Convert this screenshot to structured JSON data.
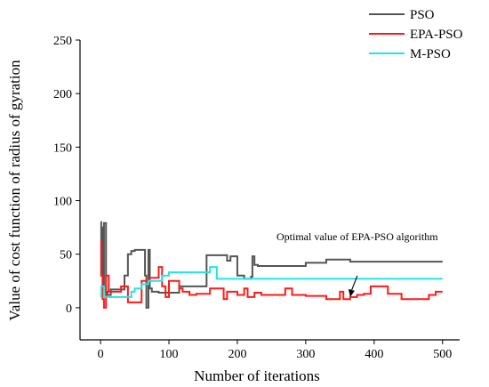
{
  "chart_data": {
    "type": "line",
    "title": "",
    "xlabel": "Number of iterations",
    "ylabel": "Value of cost function of radius of gyration",
    "xlim": [
      -30,
      525
    ],
    "ylim": [
      -30,
      250
    ],
    "xticks": [
      0,
      100,
      200,
      300,
      400,
      500
    ],
    "yticks": [
      0,
      50,
      100,
      150,
      200,
      250
    ],
    "grid": false,
    "legend_position": "top-right",
    "annotation": {
      "text": "Optimal value of EPA-PSO algorithm",
      "arrow_to": [
        365,
        10
      ]
    },
    "series": [
      {
        "name": "PSO",
        "color": "#555555",
        "x": [
          0,
          1,
          1,
          2,
          2,
          3,
          3,
          5,
          5,
          8,
          8,
          10,
          10,
          15,
          15,
          35,
          35,
          40,
          40,
          45,
          45,
          50,
          50,
          60,
          60,
          65,
          65,
          67,
          67,
          70,
          70,
          72,
          72,
          75,
          75,
          85,
          85,
          95,
          95,
          115,
          115,
          155,
          155,
          185,
          185,
          190,
          190,
          200,
          200,
          210,
          210,
          220,
          220,
          222,
          222,
          225,
          225,
          230,
          230,
          300,
          300,
          330,
          330,
          335,
          335,
          365,
          365,
          500
        ],
        "y": [
          80,
          80,
          30,
          30,
          75,
          75,
          20,
          20,
          79,
          79,
          15,
          15,
          12,
          12,
          17,
          17,
          30,
          30,
          50,
          50,
          53,
          53,
          54,
          54,
          54,
          54,
          30,
          30,
          0,
          0,
          54,
          54,
          18,
          18,
          15,
          15,
          14,
          14,
          14,
          14,
          20,
          20,
          49,
          49,
          44,
          44,
          48,
          48,
          30,
          30,
          27,
          27,
          29,
          29,
          48,
          48,
          40,
          40,
          39,
          39,
          42,
          42,
          45,
          45,
          45,
          45,
          43,
          43
        ]
      },
      {
        "name": "EPA-PSO",
        "color": "#ff1a1a",
        "x": [
          0,
          1,
          1,
          3,
          3,
          5,
          5,
          8,
          8,
          12,
          12,
          15,
          15,
          30,
          30,
          40,
          40,
          50,
          50,
          60,
          60,
          70,
          70,
          85,
          85,
          90,
          90,
          95,
          95,
          100,
          100,
          115,
          115,
          120,
          120,
          130,
          130,
          140,
          140,
          160,
          160,
          180,
          180,
          185,
          185,
          200,
          200,
          210,
          210,
          215,
          215,
          225,
          225,
          235,
          235,
          270,
          270,
          280,
          280,
          290,
          290,
          300,
          300,
          330,
          330,
          350,
          350,
          355,
          355,
          365,
          365,
          375,
          375,
          385,
          385,
          395,
          395,
          420,
          420,
          440,
          440,
          480,
          480,
          490,
          490,
          500
        ],
        "y": [
          62,
          62,
          30,
          30,
          8,
          8,
          0,
          0,
          30,
          30,
          15,
          15,
          15,
          15,
          20,
          20,
          5,
          5,
          5,
          5,
          25,
          25,
          28,
          28,
          38,
          38,
          20,
          20,
          10,
          10,
          25,
          25,
          18,
          18,
          15,
          15,
          12,
          12,
          13,
          13,
          18,
          18,
          8,
          8,
          15,
          15,
          12,
          12,
          18,
          18,
          10,
          10,
          14,
          14,
          12,
          12,
          18,
          18,
          12,
          12,
          12,
          12,
          11,
          11,
          8,
          8,
          15,
          15,
          8,
          8,
          10,
          10,
          12,
          12,
          13,
          13,
          20,
          20,
          13,
          13,
          8,
          8,
          12,
          12,
          15,
          15
        ]
      },
      {
        "name": "M-PSO",
        "color": "#22e5e5",
        "x": [
          0,
          1,
          1,
          5,
          5,
          30,
          30,
          45,
          45,
          50,
          50,
          60,
          60,
          70,
          70,
          90,
          90,
          100,
          100,
          160,
          160,
          170,
          170,
          500
        ],
        "y": [
          10,
          10,
          20,
          20,
          10,
          10,
          10,
          10,
          15,
          15,
          18,
          18,
          22,
          22,
          25,
          25,
          30,
          30,
          33,
          33,
          38,
          38,
          27,
          27
        ]
      }
    ]
  }
}
